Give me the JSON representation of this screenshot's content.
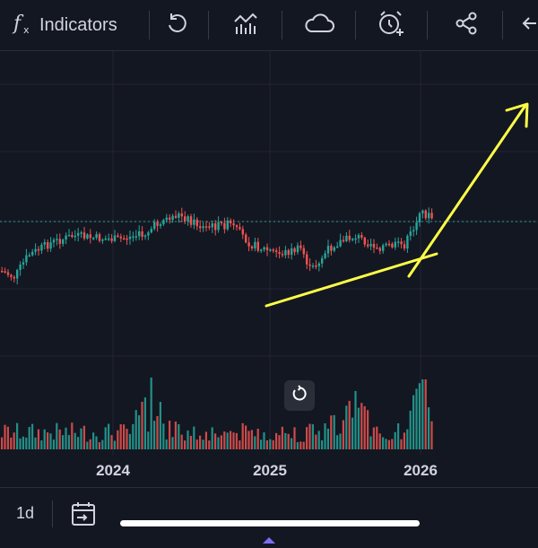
{
  "toolbar": {
    "indicators_label": "Indicators",
    "icons": [
      "function-icon",
      "replay-icon",
      "compare-icon",
      "cloud-icon",
      "alert-icon",
      "share-icon",
      "back-icon"
    ]
  },
  "bottom": {
    "interval": "1d",
    "icons": [
      "date-range-icon"
    ]
  },
  "colors": {
    "up": "#26a69a",
    "down": "#ef5350",
    "trend_lines": "#ffff47",
    "background": "#131722"
  },
  "chart_data": {
    "type": "candlestick",
    "x_axis_labels": [
      "2024",
      "2025",
      "2026"
    ],
    "price_line": "dotted",
    "annotations": [
      "ascending-support-line",
      "upward-arrow"
    ]
  }
}
